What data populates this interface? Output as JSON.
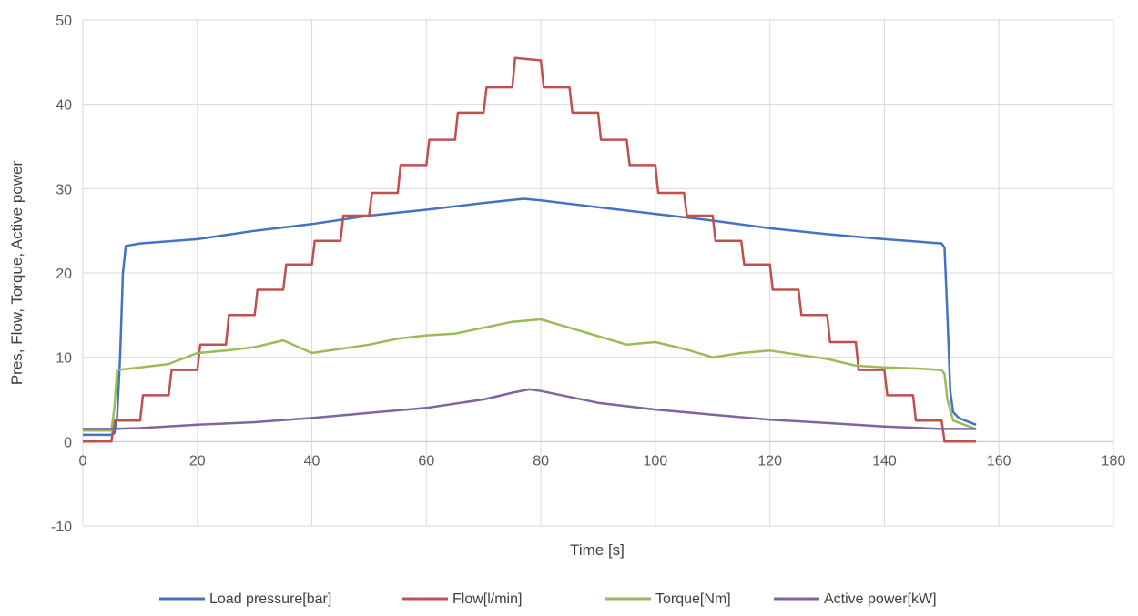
{
  "chart_data": {
    "type": "line",
    "title": "",
    "xlabel": "Time [s]",
    "ylabel": "Pres, Flow, Torque, Active power",
    "xlim": [
      0,
      180
    ],
    "ylim": [
      -10,
      50
    ],
    "x_ticks": [
      0,
      20,
      40,
      60,
      80,
      100,
      120,
      140,
      160,
      180
    ],
    "y_ticks": [
      -10,
      0,
      10,
      20,
      30,
      40,
      50
    ],
    "grid": true,
    "legend_position": "bottom",
    "series": [
      {
        "name": "Load pressure[bar]",
        "color": "#4472C4",
        "points": [
          [
            0,
            0.8
          ],
          [
            5,
            0.8
          ],
          [
            5.5,
            1
          ],
          [
            6,
            3
          ],
          [
            6.5,
            10
          ],
          [
            7,
            20
          ],
          [
            7.5,
            23.2
          ],
          [
            10,
            23.5
          ],
          [
            20,
            24
          ],
          [
            30,
            25
          ],
          [
            40,
            25.8
          ],
          [
            50,
            26.8
          ],
          [
            60,
            27.5
          ],
          [
            70,
            28.3
          ],
          [
            77,
            28.8
          ],
          [
            80,
            28.6
          ],
          [
            90,
            27.8
          ],
          [
            100,
            27
          ],
          [
            110,
            26.2
          ],
          [
            120,
            25.3
          ],
          [
            130,
            24.6
          ],
          [
            140,
            24
          ],
          [
            150,
            23.5
          ],
          [
            150.5,
            23
          ],
          [
            151,
            15
          ],
          [
            151.5,
            6
          ],
          [
            152,
            3.5
          ],
          [
            153,
            2.8
          ],
          [
            156,
            2
          ]
        ]
      },
      {
        "name": "Flow[l/min]",
        "color": "#C0504D",
        "points": [
          [
            0,
            0
          ],
          [
            5,
            0
          ],
          [
            5.5,
            2.5
          ],
          [
            10,
            2.5
          ],
          [
            10.5,
            5.5
          ],
          [
            15,
            5.5
          ],
          [
            15.5,
            8.5
          ],
          [
            20,
            8.5
          ],
          [
            20.5,
            11.5
          ],
          [
            25,
            11.5
          ],
          [
            25.5,
            15
          ],
          [
            30,
            15
          ],
          [
            30.5,
            18
          ],
          [
            35,
            18
          ],
          [
            35.5,
            21
          ],
          [
            40,
            21
          ],
          [
            40.5,
            23.8
          ],
          [
            45,
            23.8
          ],
          [
            45.5,
            26.8
          ],
          [
            50,
            26.8
          ],
          [
            50.5,
            29.5
          ],
          [
            55,
            29.5
          ],
          [
            55.5,
            32.8
          ],
          [
            60,
            32.8
          ],
          [
            60.5,
            35.8
          ],
          [
            65,
            35.8
          ],
          [
            65.5,
            39
          ],
          [
            70,
            39
          ],
          [
            70.5,
            42
          ],
          [
            75,
            42
          ],
          [
            75.5,
            45.5
          ],
          [
            80,
            45.2
          ],
          [
            80.5,
            42
          ],
          [
            85,
            42
          ],
          [
            85.5,
            39
          ],
          [
            90,
            39
          ],
          [
            90.5,
            35.8
          ],
          [
            95,
            35.8
          ],
          [
            95.5,
            32.8
          ],
          [
            100,
            32.8
          ],
          [
            100.5,
            29.5
          ],
          [
            105,
            29.5
          ],
          [
            105.5,
            26.8
          ],
          [
            110,
            26.8
          ],
          [
            110.5,
            23.8
          ],
          [
            115,
            23.8
          ],
          [
            115.5,
            21
          ],
          [
            120,
            21
          ],
          [
            120.5,
            18
          ],
          [
            125,
            18
          ],
          [
            125.5,
            15
          ],
          [
            130,
            15
          ],
          [
            130.5,
            11.8
          ],
          [
            135,
            11.8
          ],
          [
            135.5,
            8.5
          ],
          [
            140,
            8.5
          ],
          [
            140.5,
            5.5
          ],
          [
            145,
            5.5
          ],
          [
            145.5,
            2.5
          ],
          [
            150,
            2.5
          ],
          [
            150.5,
            0
          ],
          [
            156,
            0
          ]
        ]
      },
      {
        "name": "Torque[Nm]",
        "color": "#9BBB59",
        "points": [
          [
            0,
            1.3
          ],
          [
            5,
            1.3
          ],
          [
            5.5,
            4
          ],
          [
            6,
            8.5
          ],
          [
            10,
            8.8
          ],
          [
            15,
            9.2
          ],
          [
            20,
            10.5
          ],
          [
            25,
            10.8
          ],
          [
            30,
            11.2
          ],
          [
            35,
            12
          ],
          [
            40,
            10.5
          ],
          [
            45,
            11
          ],
          [
            50,
            11.5
          ],
          [
            55,
            12.2
          ],
          [
            60,
            12.6
          ],
          [
            65,
            12.8
          ],
          [
            70,
            13.5
          ],
          [
            75,
            14.2
          ],
          [
            80,
            14.5
          ],
          [
            85,
            13.5
          ],
          [
            90,
            12.5
          ],
          [
            95,
            11.5
          ],
          [
            100,
            11.8
          ],
          [
            105,
            11
          ],
          [
            110,
            10
          ],
          [
            115,
            10.5
          ],
          [
            120,
            10.8
          ],
          [
            125,
            10.3
          ],
          [
            130,
            9.8
          ],
          [
            135,
            9
          ],
          [
            140,
            8.8
          ],
          [
            145,
            8.7
          ],
          [
            150,
            8.5
          ],
          [
            150.5,
            8
          ],
          [
            151,
            5
          ],
          [
            152,
            2.5
          ],
          [
            156,
            1.5
          ]
        ]
      },
      {
        "name": "Active power[kW]",
        "color": "#8064A2",
        "points": [
          [
            0,
            1.5
          ],
          [
            5,
            1.5
          ],
          [
            10,
            1.6
          ],
          [
            20,
            2
          ],
          [
            30,
            2.3
          ],
          [
            40,
            2.8
          ],
          [
            50,
            3.4
          ],
          [
            60,
            4
          ],
          [
            70,
            5
          ],
          [
            75,
            5.8
          ],
          [
            78,
            6.2
          ],
          [
            80,
            6
          ],
          [
            85,
            5.3
          ],
          [
            90,
            4.6
          ],
          [
            100,
            3.8
          ],
          [
            110,
            3.2
          ],
          [
            120,
            2.6
          ],
          [
            130,
            2.2
          ],
          [
            140,
            1.8
          ],
          [
            150,
            1.5
          ],
          [
            156,
            1.5
          ]
        ]
      }
    ]
  }
}
